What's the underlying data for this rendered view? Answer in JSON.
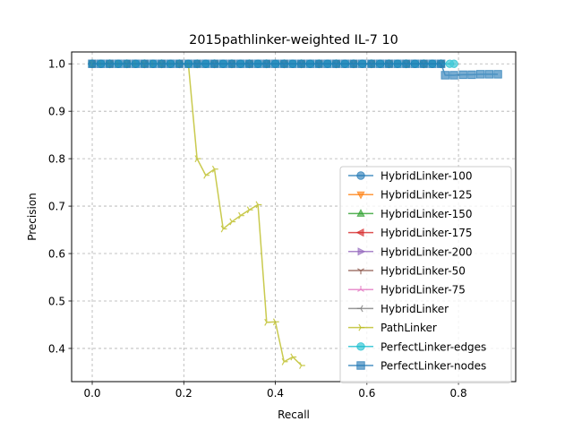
{
  "chart_data": {
    "type": "line",
    "title": "2015pathlinker-weighted IL-7 10",
    "xlabel": "Recall",
    "ylabel": "Precision",
    "xlim": [
      -0.045,
      0.925
    ],
    "ylim": [
      0.33,
      1.025
    ],
    "xticks": [
      "0.0",
      "0.2",
      "0.4",
      "0.6",
      "0.8"
    ],
    "yticks": [
      "0.4",
      "0.5",
      "0.6",
      "0.7",
      "0.8",
      "0.9",
      "1.0"
    ],
    "grid": true,
    "grid_style": "dashed",
    "legend_position": "lower-right",
    "series": [
      {
        "name": "HybridLinker-100",
        "color": "#1f77b4",
        "marker": "circle",
        "x": [
          0.0,
          0.019,
          0.038,
          0.057,
          0.076,
          0.095,
          0.114,
          0.133,
          0.152,
          0.171,
          0.19,
          0.21,
          0.229,
          0.248,
          0.267,
          0.286,
          0.305,
          0.324,
          0.343,
          0.362,
          0.381,
          0.4,
          0.419,
          0.438,
          0.457,
          0.476,
          0.495,
          0.514,
          0.533,
          0.552,
          0.571,
          0.59,
          0.61,
          0.629,
          0.648,
          0.667,
          0.686,
          0.705,
          0.724,
          0.743,
          0.762
        ],
        "y": [
          1.0,
          1.0,
          1.0,
          1.0,
          1.0,
          1.0,
          1.0,
          1.0,
          1.0,
          1.0,
          1.0,
          1.0,
          1.0,
          1.0,
          1.0,
          1.0,
          1.0,
          1.0,
          1.0,
          1.0,
          1.0,
          1.0,
          1.0,
          1.0,
          1.0,
          1.0,
          1.0,
          1.0,
          1.0,
          1.0,
          1.0,
          1.0,
          1.0,
          1.0,
          1.0,
          1.0,
          1.0,
          1.0,
          1.0,
          1.0,
          1.0
        ]
      },
      {
        "name": "HybridLinker-125",
        "color": "#ff7f0e",
        "marker": "triangle-down",
        "x": [
          0.0,
          0.038,
          0.076,
          0.114,
          0.152,
          0.19,
          0.229,
          0.267,
          0.305,
          0.343,
          0.381,
          0.419,
          0.457,
          0.495,
          0.533,
          0.571,
          0.61,
          0.648,
          0.686,
          0.724,
          0.762
        ],
        "y": [
          1.0,
          1.0,
          1.0,
          1.0,
          1.0,
          1.0,
          1.0,
          1.0,
          1.0,
          1.0,
          1.0,
          1.0,
          1.0,
          1.0,
          1.0,
          1.0,
          1.0,
          1.0,
          1.0,
          1.0,
          1.0
        ]
      },
      {
        "name": "HybridLinker-150",
        "color": "#2ca02c",
        "marker": "triangle-up",
        "x": [
          0.0,
          0.038,
          0.076,
          0.114,
          0.152,
          0.19,
          0.229,
          0.267,
          0.305,
          0.343,
          0.381,
          0.419,
          0.457,
          0.495,
          0.533,
          0.571,
          0.61,
          0.648,
          0.686,
          0.724,
          0.762
        ],
        "y": [
          1.0,
          1.0,
          1.0,
          1.0,
          1.0,
          1.0,
          1.0,
          1.0,
          1.0,
          1.0,
          1.0,
          1.0,
          1.0,
          1.0,
          1.0,
          1.0,
          1.0,
          1.0,
          1.0,
          1.0,
          1.0
        ]
      },
      {
        "name": "HybridLinker-175",
        "color": "#d62728",
        "marker": "triangle-left",
        "x": [
          0.0,
          0.038,
          0.076,
          0.114,
          0.152,
          0.19,
          0.229,
          0.267,
          0.305,
          0.343,
          0.381,
          0.419,
          0.457,
          0.495,
          0.533,
          0.571,
          0.61,
          0.648,
          0.686,
          0.724,
          0.762
        ],
        "y": [
          1.0,
          1.0,
          1.0,
          1.0,
          1.0,
          1.0,
          1.0,
          1.0,
          1.0,
          1.0,
          1.0,
          1.0,
          1.0,
          1.0,
          1.0,
          1.0,
          1.0,
          1.0,
          1.0,
          1.0,
          1.0
        ]
      },
      {
        "name": "HybridLinker-200",
        "color": "#9467bd",
        "marker": "triangle-right",
        "x": [
          0.0,
          0.038,
          0.076,
          0.114,
          0.152,
          0.19,
          0.229,
          0.267,
          0.305,
          0.343,
          0.381,
          0.419,
          0.457,
          0.495,
          0.533,
          0.571,
          0.61,
          0.648,
          0.686,
          0.724,
          0.762
        ],
        "y": [
          1.0,
          1.0,
          1.0,
          1.0,
          1.0,
          1.0,
          1.0,
          1.0,
          1.0,
          1.0,
          1.0,
          1.0,
          1.0,
          1.0,
          1.0,
          1.0,
          1.0,
          1.0,
          1.0,
          1.0,
          1.0
        ]
      },
      {
        "name": "HybridLinker-50",
        "color": "#8c564b",
        "marker": "tri-down",
        "x": [
          0.0,
          0.038,
          0.076,
          0.114,
          0.152,
          0.19,
          0.229,
          0.267,
          0.305,
          0.343,
          0.381,
          0.419,
          0.457,
          0.495,
          0.533,
          0.571,
          0.61,
          0.648,
          0.686,
          0.724,
          0.762
        ],
        "y": [
          1.0,
          1.0,
          1.0,
          1.0,
          1.0,
          1.0,
          1.0,
          1.0,
          1.0,
          1.0,
          1.0,
          1.0,
          1.0,
          1.0,
          1.0,
          1.0,
          1.0,
          1.0,
          1.0,
          1.0,
          1.0
        ]
      },
      {
        "name": "HybridLinker-75",
        "color": "#e377c2",
        "marker": "tri-up",
        "x": [
          0.0,
          0.038,
          0.076,
          0.114,
          0.152,
          0.19,
          0.229,
          0.267,
          0.305,
          0.343,
          0.381,
          0.419,
          0.457,
          0.495,
          0.533,
          0.571,
          0.61,
          0.648,
          0.686,
          0.724,
          0.762
        ],
        "y": [
          1.0,
          1.0,
          1.0,
          1.0,
          1.0,
          1.0,
          1.0,
          1.0,
          1.0,
          1.0,
          1.0,
          1.0,
          1.0,
          1.0,
          1.0,
          1.0,
          1.0,
          1.0,
          1.0,
          1.0,
          1.0
        ]
      },
      {
        "name": "HybridLinker",
        "color": "#7f7f7f",
        "marker": "tri-left",
        "x": [
          0.0,
          0.038,
          0.076,
          0.114,
          0.152,
          0.19,
          0.229,
          0.267,
          0.305,
          0.343,
          0.381,
          0.419,
          0.457,
          0.495,
          0.533,
          0.571,
          0.61,
          0.648,
          0.686,
          0.724,
          0.762
        ],
        "y": [
          1.0,
          1.0,
          1.0,
          1.0,
          1.0,
          1.0,
          1.0,
          1.0,
          1.0,
          1.0,
          1.0,
          1.0,
          1.0,
          1.0,
          1.0,
          1.0,
          1.0,
          1.0,
          1.0,
          1.0,
          1.0
        ]
      },
      {
        "name": "PathLinker",
        "color": "#bcbd22",
        "marker": "tri-right",
        "x": [
          0.0,
          0.019,
          0.038,
          0.057,
          0.076,
          0.095,
          0.114,
          0.133,
          0.152,
          0.171,
          0.19,
          0.21,
          0.229,
          0.248,
          0.267,
          0.286,
          0.305,
          0.324,
          0.343,
          0.362,
          0.381,
          0.4,
          0.419,
          0.438,
          0.457
        ],
        "y": [
          1.0,
          1.0,
          1.0,
          1.0,
          1.0,
          1.0,
          1.0,
          1.0,
          1.0,
          1.0,
          1.0,
          1.0,
          0.8,
          0.765,
          0.778,
          0.652,
          0.667,
          0.68,
          0.692,
          0.703,
          0.455,
          0.456,
          0.372,
          0.382,
          0.364
        ]
      },
      {
        "name": "PerfectLinker-edges",
        "color": "#17becf",
        "marker": "circle",
        "x": [
          0.0,
          0.019,
          0.038,
          0.057,
          0.076,
          0.095,
          0.114,
          0.133,
          0.152,
          0.171,
          0.19,
          0.21,
          0.229,
          0.248,
          0.267,
          0.286,
          0.305,
          0.324,
          0.343,
          0.362,
          0.381,
          0.4,
          0.419,
          0.438,
          0.457,
          0.476,
          0.495,
          0.514,
          0.533,
          0.552,
          0.571,
          0.59,
          0.61,
          0.629,
          0.648,
          0.667,
          0.686,
          0.705,
          0.724,
          0.743,
          0.762,
          0.781,
          0.79
        ],
        "y": [
          1.0,
          1.0,
          1.0,
          1.0,
          1.0,
          1.0,
          1.0,
          1.0,
          1.0,
          1.0,
          1.0,
          1.0,
          1.0,
          1.0,
          1.0,
          1.0,
          1.0,
          1.0,
          1.0,
          1.0,
          1.0,
          1.0,
          1.0,
          1.0,
          1.0,
          1.0,
          1.0,
          1.0,
          1.0,
          1.0,
          1.0,
          1.0,
          1.0,
          1.0,
          1.0,
          1.0,
          1.0,
          1.0,
          1.0,
          1.0,
          1.0,
          1.0,
          1.0
        ]
      },
      {
        "name": "PerfectLinker-nodes",
        "color": "#1f77b4",
        "marker": "square",
        "x": [
          0.0,
          0.019,
          0.038,
          0.057,
          0.076,
          0.095,
          0.114,
          0.133,
          0.152,
          0.171,
          0.19,
          0.21,
          0.229,
          0.248,
          0.267,
          0.286,
          0.305,
          0.324,
          0.343,
          0.362,
          0.381,
          0.4,
          0.419,
          0.438,
          0.457,
          0.476,
          0.495,
          0.514,
          0.533,
          0.552,
          0.571,
          0.59,
          0.61,
          0.629,
          0.648,
          0.667,
          0.686,
          0.705,
          0.724,
          0.743,
          0.762,
          0.771,
          0.79,
          0.81,
          0.829,
          0.848,
          0.867,
          0.886
        ],
        "y": [
          1.0,
          1.0,
          1.0,
          1.0,
          1.0,
          1.0,
          1.0,
          1.0,
          1.0,
          1.0,
          1.0,
          1.0,
          1.0,
          1.0,
          1.0,
          1.0,
          1.0,
          1.0,
          1.0,
          1.0,
          1.0,
          1.0,
          1.0,
          1.0,
          1.0,
          1.0,
          1.0,
          1.0,
          1.0,
          1.0,
          1.0,
          1.0,
          1.0,
          1.0,
          1.0,
          1.0,
          1.0,
          1.0,
          1.0,
          1.0,
          1.0,
          0.976,
          0.976,
          0.977,
          0.977,
          0.978,
          0.978,
          0.978
        ]
      }
    ]
  }
}
